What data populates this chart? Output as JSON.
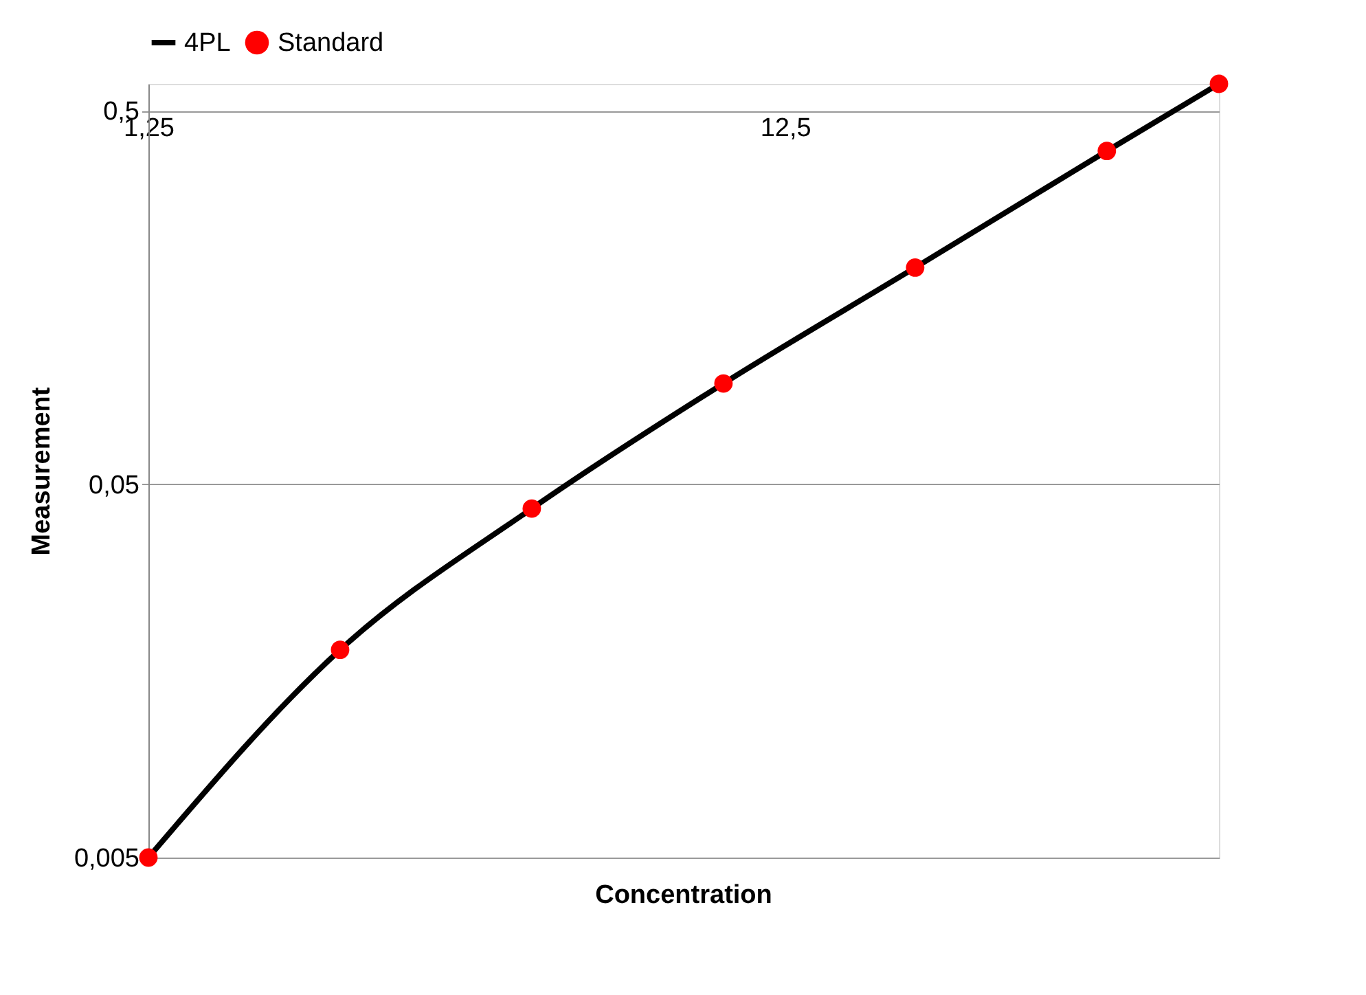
{
  "chart_data": {
    "type": "line",
    "xlabel": "Concentration",
    "ylabel": "Measurement",
    "log": "xy",
    "xlim": [
      1.25,
      60
    ],
    "ylim": [
      0.005,
      0.59
    ],
    "xticks": [
      {
        "value": 1.25,
        "label": "1,25"
      },
      {
        "value": 12.5,
        "label": "12,5"
      }
    ],
    "yticks": [
      {
        "value": 0.005,
        "label": "0,005"
      },
      {
        "value": 0.05,
        "label": "0,05"
      },
      {
        "value": 0.5,
        "label": "0,5"
      }
    ],
    "grid": "y",
    "legend": "top",
    "series": [
      {
        "name": "4PL",
        "color": "#000000",
        "x": [
          1.25,
          2.5,
          5,
          10,
          20,
          40,
          60
        ],
        "values": [
          0.005,
          0.018,
          0.043,
          0.093,
          0.19,
          0.39,
          0.59
        ]
      },
      {
        "name": "Standard",
        "type": "scatter",
        "marker": "circle",
        "color": "#ff0000",
        "x": [
          1.25,
          2.5,
          5,
          10,
          20,
          40,
          60
        ],
        "values": [
          0.005,
          0.018,
          0.043,
          0.093,
          0.19,
          0.39,
          0.59
        ]
      }
    ]
  }
}
